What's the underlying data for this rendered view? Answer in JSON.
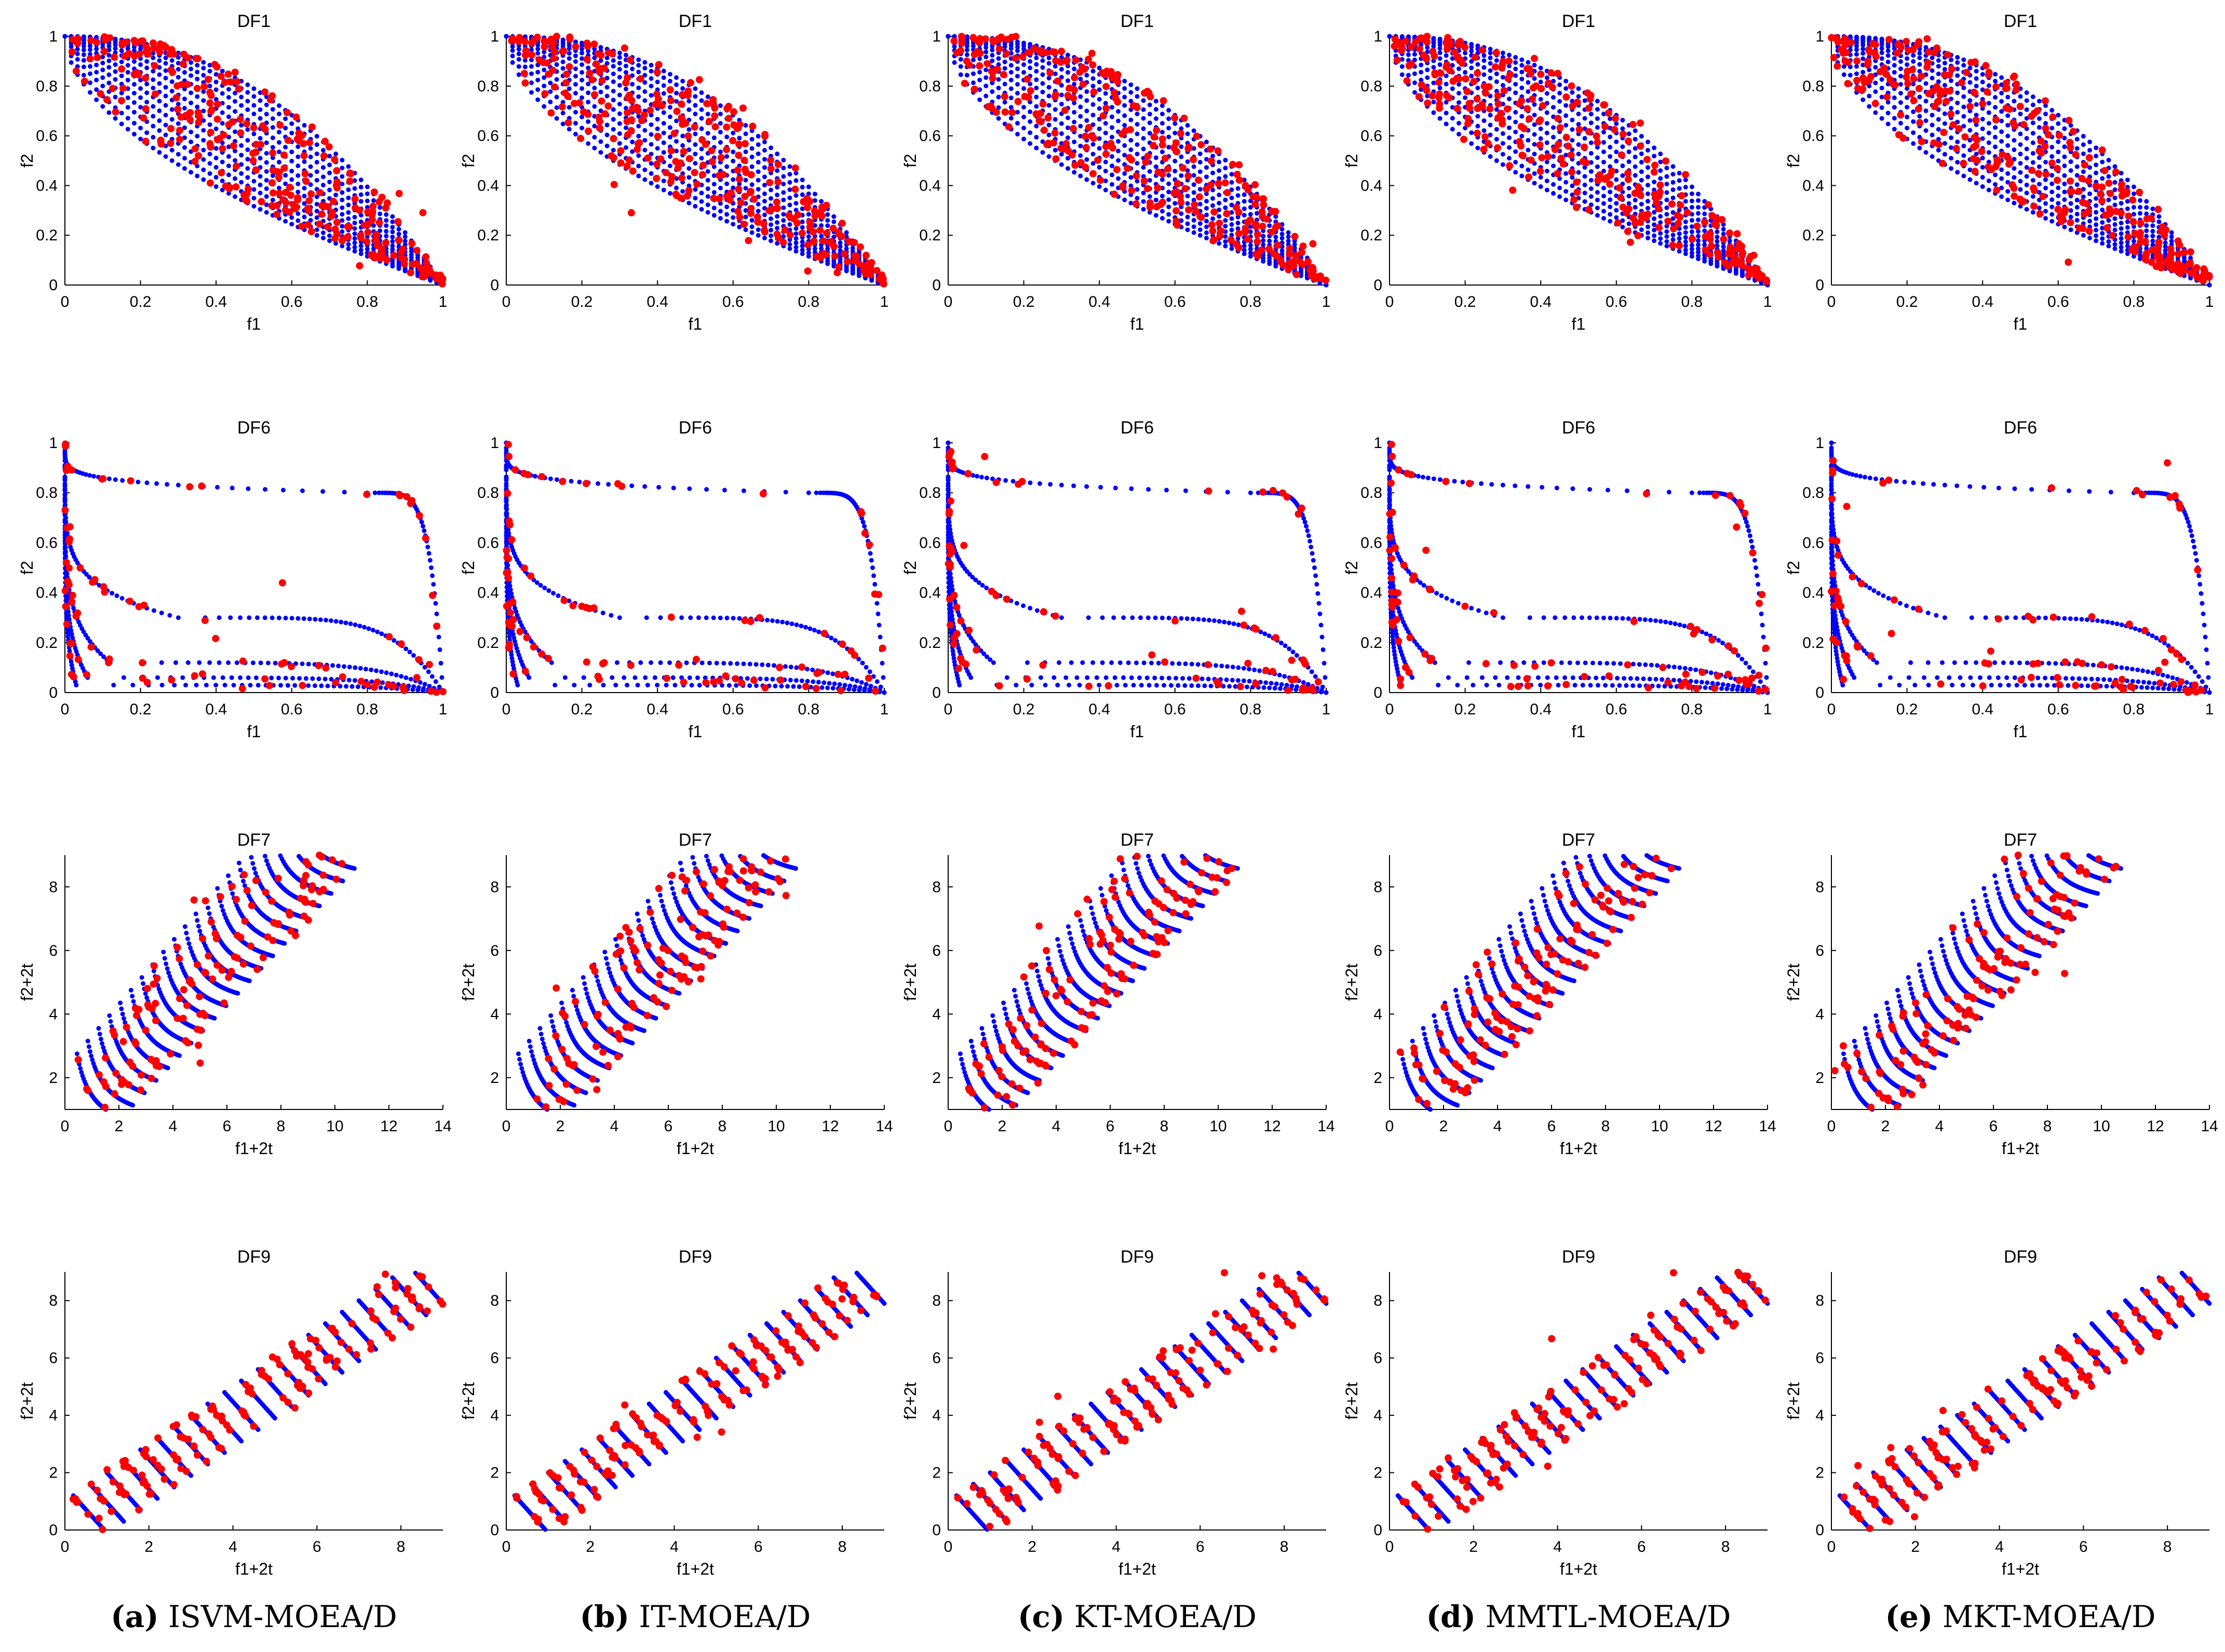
{
  "colors": {
    "pareto_front": "#0000ff",
    "obtained": "#ff0000",
    "axis": "#000000",
    "background": "#ffffff"
  },
  "columns": [
    {
      "letter": "(a)",
      "method": "ISVM-MOEA/D"
    },
    {
      "letter": "(b)",
      "method": "IT-MOEA/D"
    },
    {
      "letter": "(c)",
      "method": "KT-MOEA/D"
    },
    {
      "letter": "(d)",
      "method": "MMTL-MOEA/D"
    },
    {
      "letter": "(e)",
      "method": "MKT-MOEA/D"
    }
  ],
  "chart_data": [
    {
      "row": 0,
      "type": "scatter",
      "title": "DF1",
      "xlabel": "f1",
      "ylabel": "f2",
      "xlim": [
        0,
        1
      ],
      "ylim": [
        0,
        1
      ],
      "xticks": [
        "0",
        "0.2",
        "0.4",
        "0.6",
        "0.8",
        "1"
      ],
      "xtick_values": [
        0,
        0.2,
        0.4,
        0.6,
        0.8,
        1
      ],
      "yticks": [
        "0",
        "0.2",
        "0.4",
        "0.6",
        "0.8",
        "1"
      ],
      "ytick_values": [
        0,
        0.2,
        0.4,
        0.6,
        0.8,
        1
      ],
      "pareto_front": {
        "family": "f2 = 1 - f1^H",
        "H": [
          0.55,
          0.62,
          0.7,
          0.78,
          0.87,
          0.97,
          1.08,
          1.2,
          1.35,
          1.5,
          1.68,
          1.85,
          2.05,
          2.25
        ],
        "points_per_curve": 60
      },
      "obtained_spread": {
        "band": "around front curves, denser toward upper curves",
        "approx_count": 320
      }
    },
    {
      "row": 1,
      "type": "scatter",
      "title": "DF6",
      "xlabel": "f1",
      "ylabel": "f2",
      "xlim": [
        0,
        1
      ],
      "ylim": [
        0,
        1
      ],
      "xticks": [
        "0",
        "0.2",
        "0.4",
        "0.6",
        "0.8",
        "1"
      ],
      "xtick_values": [
        0,
        0.2,
        0.4,
        0.6,
        0.8,
        1
      ],
      "yticks": [
        "0",
        "0.2",
        "0.4",
        "0.6",
        "0.8",
        "1"
      ],
      "ytick_values": [
        0,
        0.2,
        0.4,
        0.6,
        0.8,
        1
      ],
      "pareto_front": {
        "family": "knee curves",
        "knees": [
          [
            0.8,
            0.8
          ],
          [
            0.3,
            0.3
          ],
          [
            0.12,
            0.12
          ],
          [
            0.06,
            0.06
          ],
          [
            0.03,
            0.03
          ]
        ],
        "points_per_curve": 90
      },
      "obtained_spread": {
        "band": "scattered between knee curves",
        "approx_count": 100
      }
    },
    {
      "row": 2,
      "type": "scatter",
      "title": "DF7",
      "xlabel": "f1+2t",
      "ylabel": "f2+2t",
      "xlim": [
        0,
        14
      ],
      "ylim": [
        1,
        9
      ],
      "xticks": [
        "0",
        "2",
        "4",
        "6",
        "8",
        "10",
        "12",
        "14"
      ],
      "xtick_values": [
        0,
        2,
        4,
        6,
        8,
        10,
        12,
        14
      ],
      "yticks": [
        "2",
        "4",
        "6",
        "8"
      ],
      "ytick_values": [
        2,
        4,
        6,
        8
      ],
      "pareto_front": {
        "family": "shifted convex segments",
        "segments": 21,
        "t_range": [
          0.2,
          4.2
        ]
      },
      "obtained_spread": {
        "band": "on segments with some outliers",
        "approx_count": 140
      }
    },
    {
      "row": 3,
      "type": "scatter",
      "title": "DF9",
      "xlabel": "f1+2t",
      "ylabel": "f2+2t",
      "xlim": [
        0,
        9
      ],
      "ylim": [
        0,
        9
      ],
      "xticks": [
        "0",
        "2",
        "4",
        "6",
        "8"
      ],
      "xtick_values": [
        0,
        2,
        4,
        6,
        8
      ],
      "yticks": [
        "0",
        "2",
        "4",
        "6",
        "8"
      ],
      "ytick_values": [
        0,
        2,
        4,
        6,
        8
      ],
      "pareto_front": {
        "family": "disconnected shifted line segments",
        "segments": 21,
        "t_range": [
          0.2,
          4.2
        ]
      },
      "obtained_spread": {
        "band": "on segments with scattered outliers",
        "approx_count": 160
      }
    }
  ]
}
